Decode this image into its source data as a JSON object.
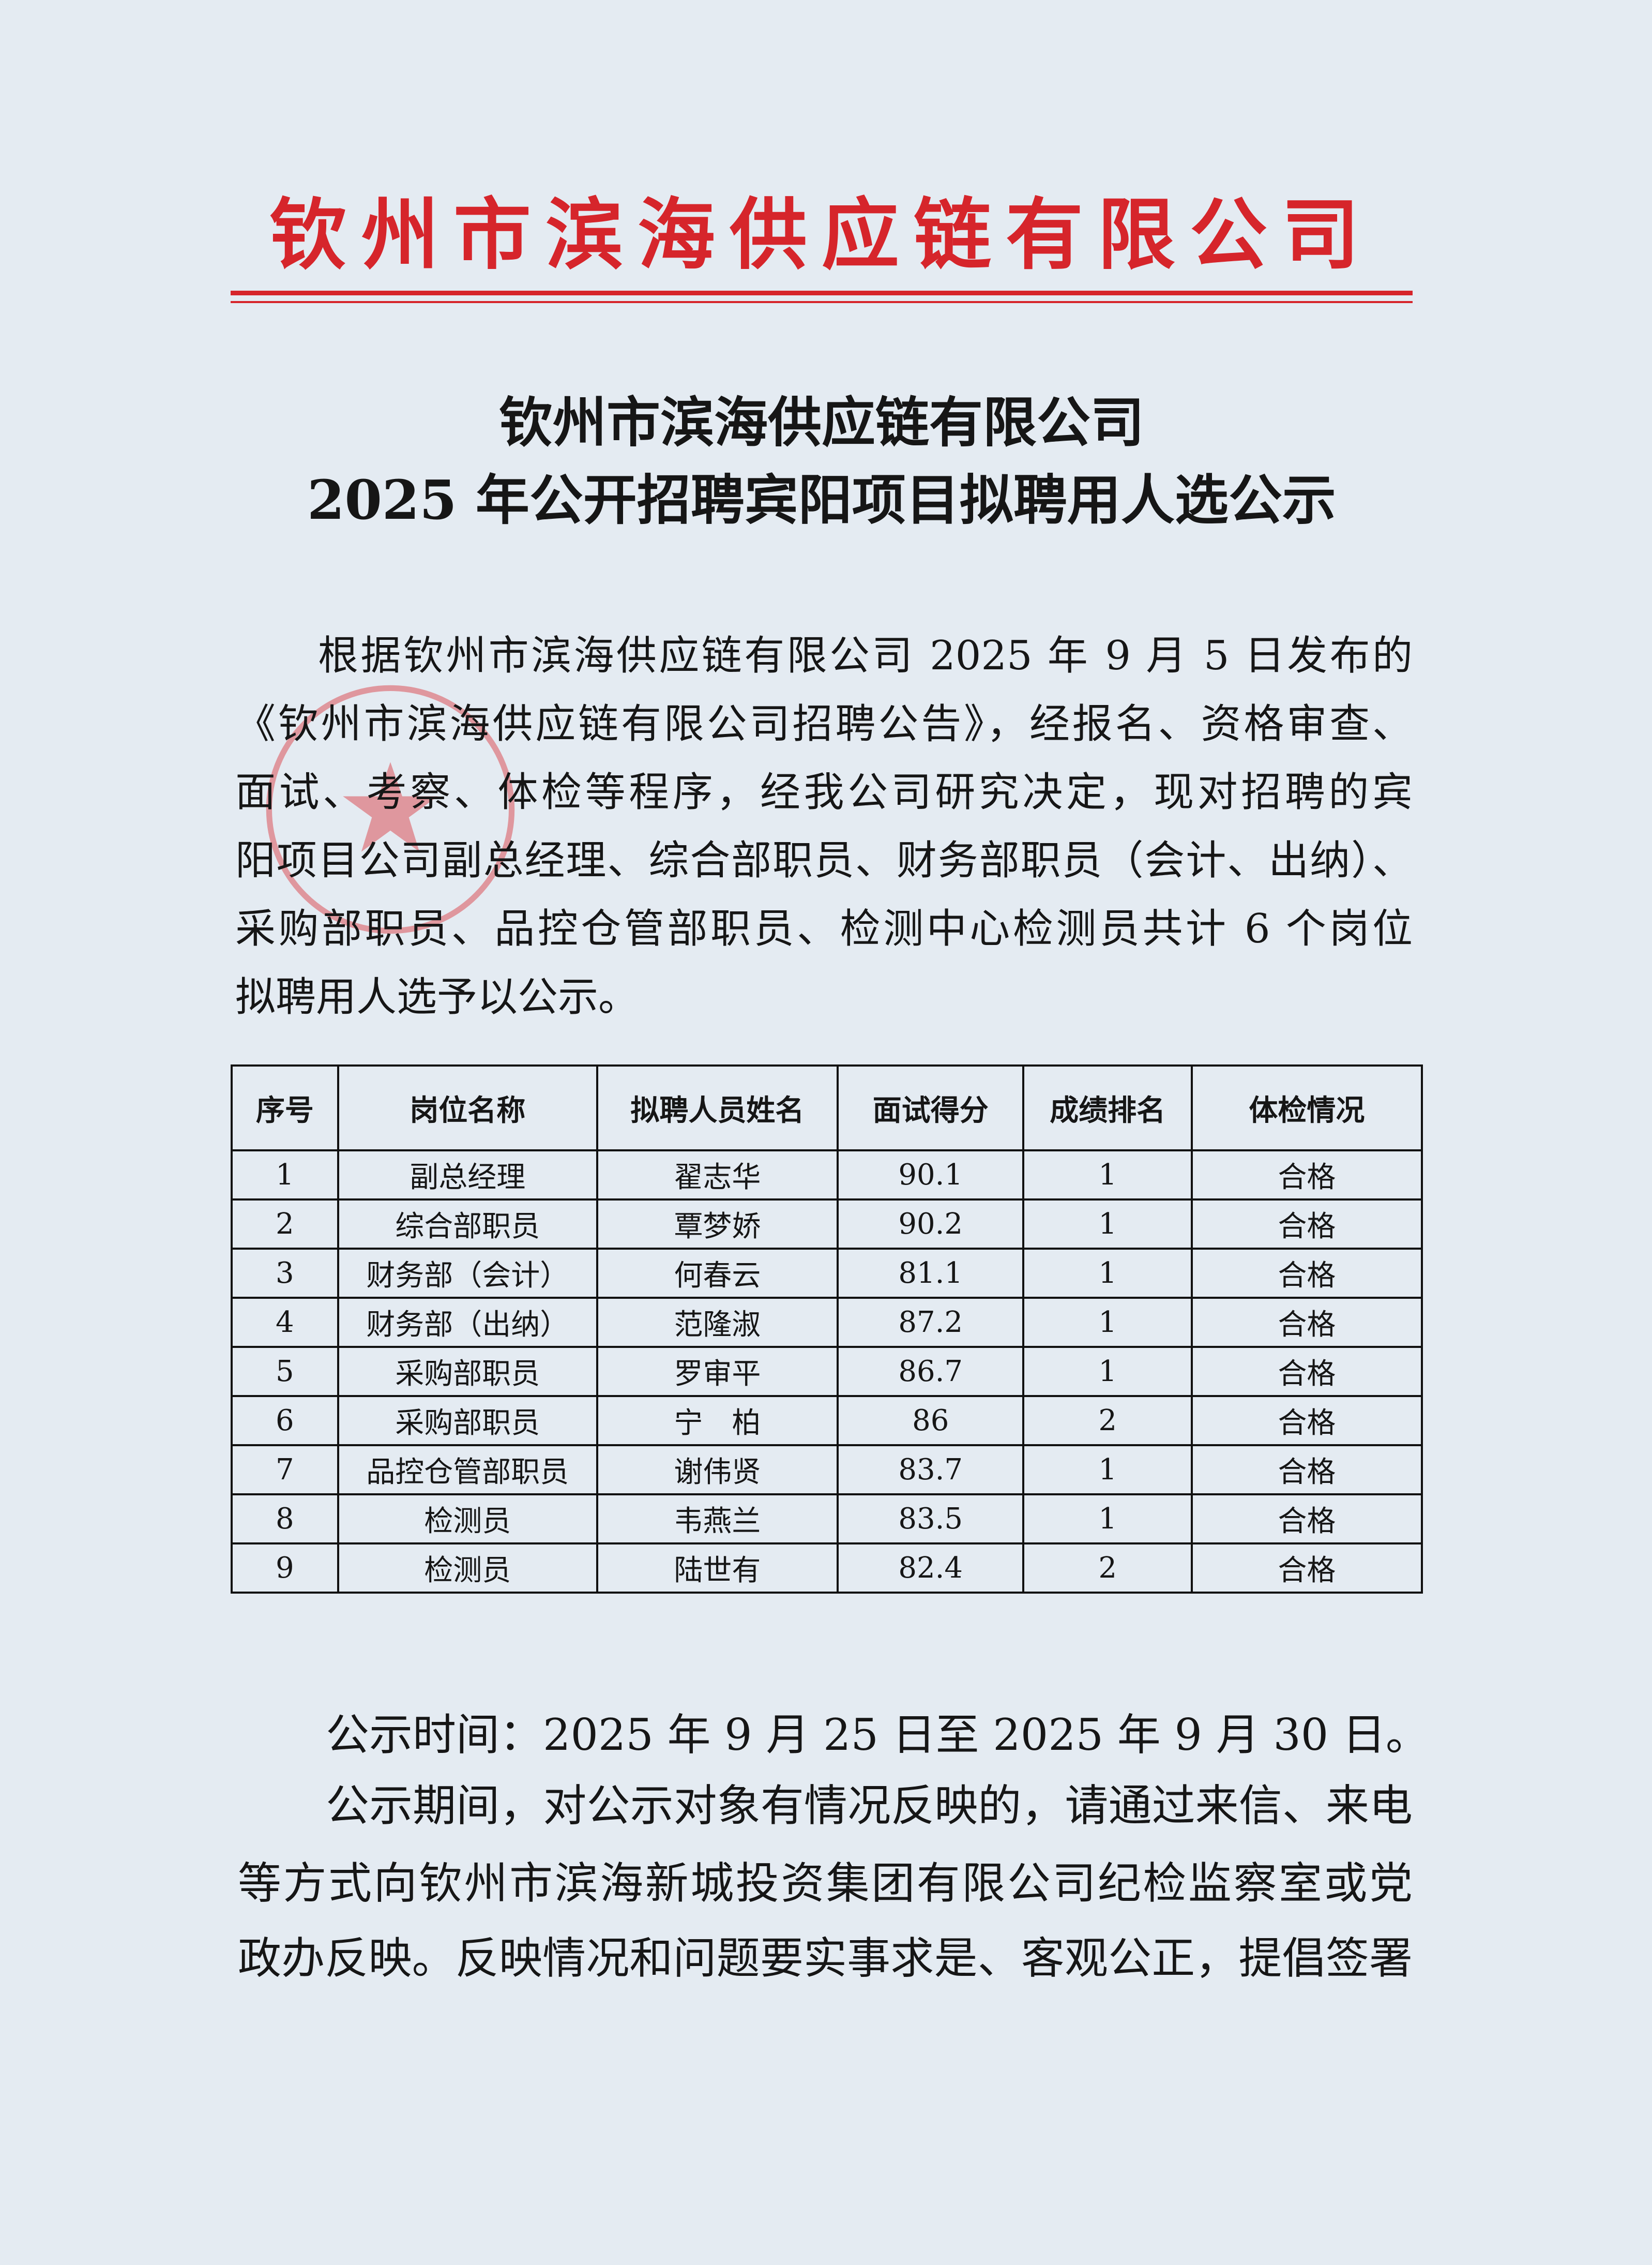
{
  "letterhead": {
    "company": "钦州市滨海供应链有限公司",
    "color": "#d6252b"
  },
  "title": {
    "line1": "钦州市滨海供应链有限公司",
    "line2": "2025 年公开招聘宾阳项目拟聘用人选公示"
  },
  "intro_lines": [
    "根据钦州市滨海供应链有限公司 2025 年 9 月 5 日发布的",
    "《钦州市滨海供应链有限公司招聘公告》，经报名、资格审查、",
    "面试、考察、体检等程序，经我公司研究决定，现对招聘的宾",
    "阳项目公司副总经理、综合部职员、财务部职员（会计、出纳）、",
    "采购部职员、品控仓管部职员、检测中心检测员共计 6 个岗位",
    "拟聘用人选予以公示。"
  ],
  "table": {
    "headers": [
      "序号",
      "岗位名称",
      "拟聘人员姓名",
      "面试得分",
      "成绩排名",
      "体检情况"
    ],
    "rows": [
      [
        "1",
        "副总经理",
        "翟志华",
        "90.1",
        "1",
        "合格"
      ],
      [
        "2",
        "综合部职员",
        "覃梦娇",
        "90.2",
        "1",
        "合格"
      ],
      [
        "3",
        "财务部（会计）",
        "何春云",
        "81.1",
        "1",
        "合格"
      ],
      [
        "4",
        "财务部（出纳）",
        "范隆淑",
        "87.2",
        "1",
        "合格"
      ],
      [
        "5",
        "采购部职员",
        "罗审平",
        "86.7",
        "1",
        "合格"
      ],
      [
        "6",
        "采购部职员",
        "宁　柏",
        "86",
        "2",
        "合格"
      ],
      [
        "7",
        "品控仓管部职员",
        "谢伟贤",
        "83.7",
        "1",
        "合格"
      ],
      [
        "8",
        "检测员",
        "韦燕兰",
        "83.5",
        "1",
        "合格"
      ],
      [
        "9",
        "检测员",
        "陆世有",
        "82.4",
        "2",
        "合格"
      ]
    ]
  },
  "notice_period": "公示时间：2025 年 9 月 25 日至 2025 年 9 月 30 日。",
  "feedback_lines": [
    "公示期间，对公示对象有情况反映的，请通过来信、来电",
    "等方式向钦州市滨海新城投资集团有限公司纪检监察室或党",
    "政办反映。反映情况和问题要实事求是、客观公正，提倡签署"
  ],
  "stamp": {
    "icon": "company-seal-star",
    "color": "#d9333a"
  }
}
